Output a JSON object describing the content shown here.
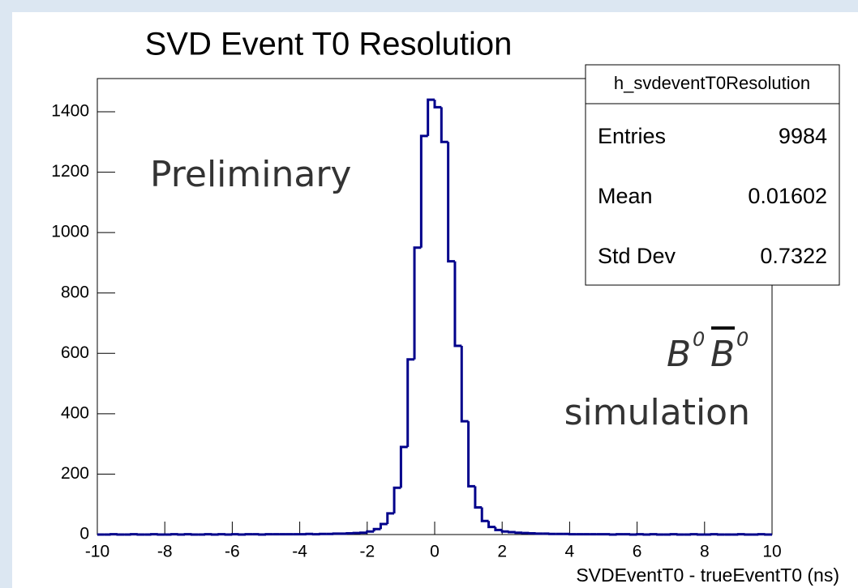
{
  "chart_data": {
    "type": "histogram",
    "title": "SVD Event T0 Resolution",
    "x_label": "SVDEventT0 - trueEventT0 (ns)",
    "color": "#00008b",
    "bins": [
      -10,
      -9.8,
      -9.6,
      -9.4,
      -9.2,
      -9,
      -8.8,
      -8.6,
      -8.4,
      -8.2,
      -8,
      -7.8,
      -7.6,
      -7.4,
      -7.2,
      -7,
      -6.8,
      -6.6,
      -6.4,
      -6.2,
      -6,
      -5.8,
      -5.6,
      -5.4,
      -5.2,
      -5,
      -4.8,
      -4.6,
      -4.4,
      -4.2,
      -4,
      -3.8,
      -3.6,
      -3.4,
      -3.2,
      -3,
      -2.8,
      -2.6,
      -2.4,
      -2.2,
      -2,
      -1.8,
      -1.6,
      -1.4,
      -1.2,
      -1,
      -0.8,
      -0.6,
      -0.4,
      -0.2,
      0,
      0.2,
      0.4,
      0.6,
      0.8,
      1,
      1.2,
      1.4,
      1.6,
      1.8,
      2,
      2.2,
      2.4,
      2.6,
      2.8,
      3,
      3.2,
      3.4,
      3.6,
      3.8,
      4,
      4.2,
      4.4,
      4.6,
      4.8,
      5,
      5.2,
      5.4,
      5.6,
      5.8,
      6,
      6.2,
      6.4,
      6.6,
      6.8,
      7,
      7.2,
      7.4,
      7.6,
      7.8,
      8,
      8.2,
      8.4,
      8.6,
      8.8,
      9,
      9.2,
      9.4,
      9.6,
      9.8,
      10
    ],
    "values": [
      0,
      0,
      1,
      0,
      0,
      1,
      0,
      0,
      1,
      0,
      0,
      1,
      0,
      1,
      0,
      0,
      1,
      0,
      1,
      0,
      1,
      0,
      1,
      1,
      0,
      1,
      1,
      1,
      1,
      1,
      1,
      2,
      1,
      2,
      2,
      3,
      3,
      4,
      5,
      6,
      10,
      18,
      35,
      70,
      155,
      290,
      580,
      950,
      1320,
      1440,
      1415,
      1300,
      905,
      625,
      375,
      160,
      90,
      45,
      25,
      15,
      10,
      8,
      6,
      5,
      4,
      3,
      3,
      2,
      2,
      2,
      1,
      1,
      1,
      1,
      1,
      1,
      0,
      1,
      1,
      0,
      1,
      0,
      1,
      0,
      0,
      1,
      0,
      0,
      1,
      0,
      0,
      1,
      0,
      0,
      0,
      1,
      0,
      0,
      1,
      0
    ],
    "xlim": [
      -10,
      10
    ],
    "xticks": [
      -10,
      -8,
      -6,
      -4,
      -2,
      0,
      2,
      4,
      6,
      8,
      10
    ],
    "ylim": [
      0,
      1510
    ],
    "yticks": [
      0,
      200,
      400,
      600,
      800,
      1000,
      1200,
      1400
    ],
    "stats": {
      "name": "h_svdeventT0Resolution",
      "rows": [
        {
          "label": "Entries",
          "value": 9984
        },
        {
          "label": "Mean",
          "value": 0.01602
        },
        {
          "label": "Std Dev",
          "value": 0.7322
        }
      ]
    },
    "annotations": [
      "Preliminary",
      "simulation"
    ],
    "process": [
      "B",
      "0",
      "B",
      "0"
    ]
  }
}
